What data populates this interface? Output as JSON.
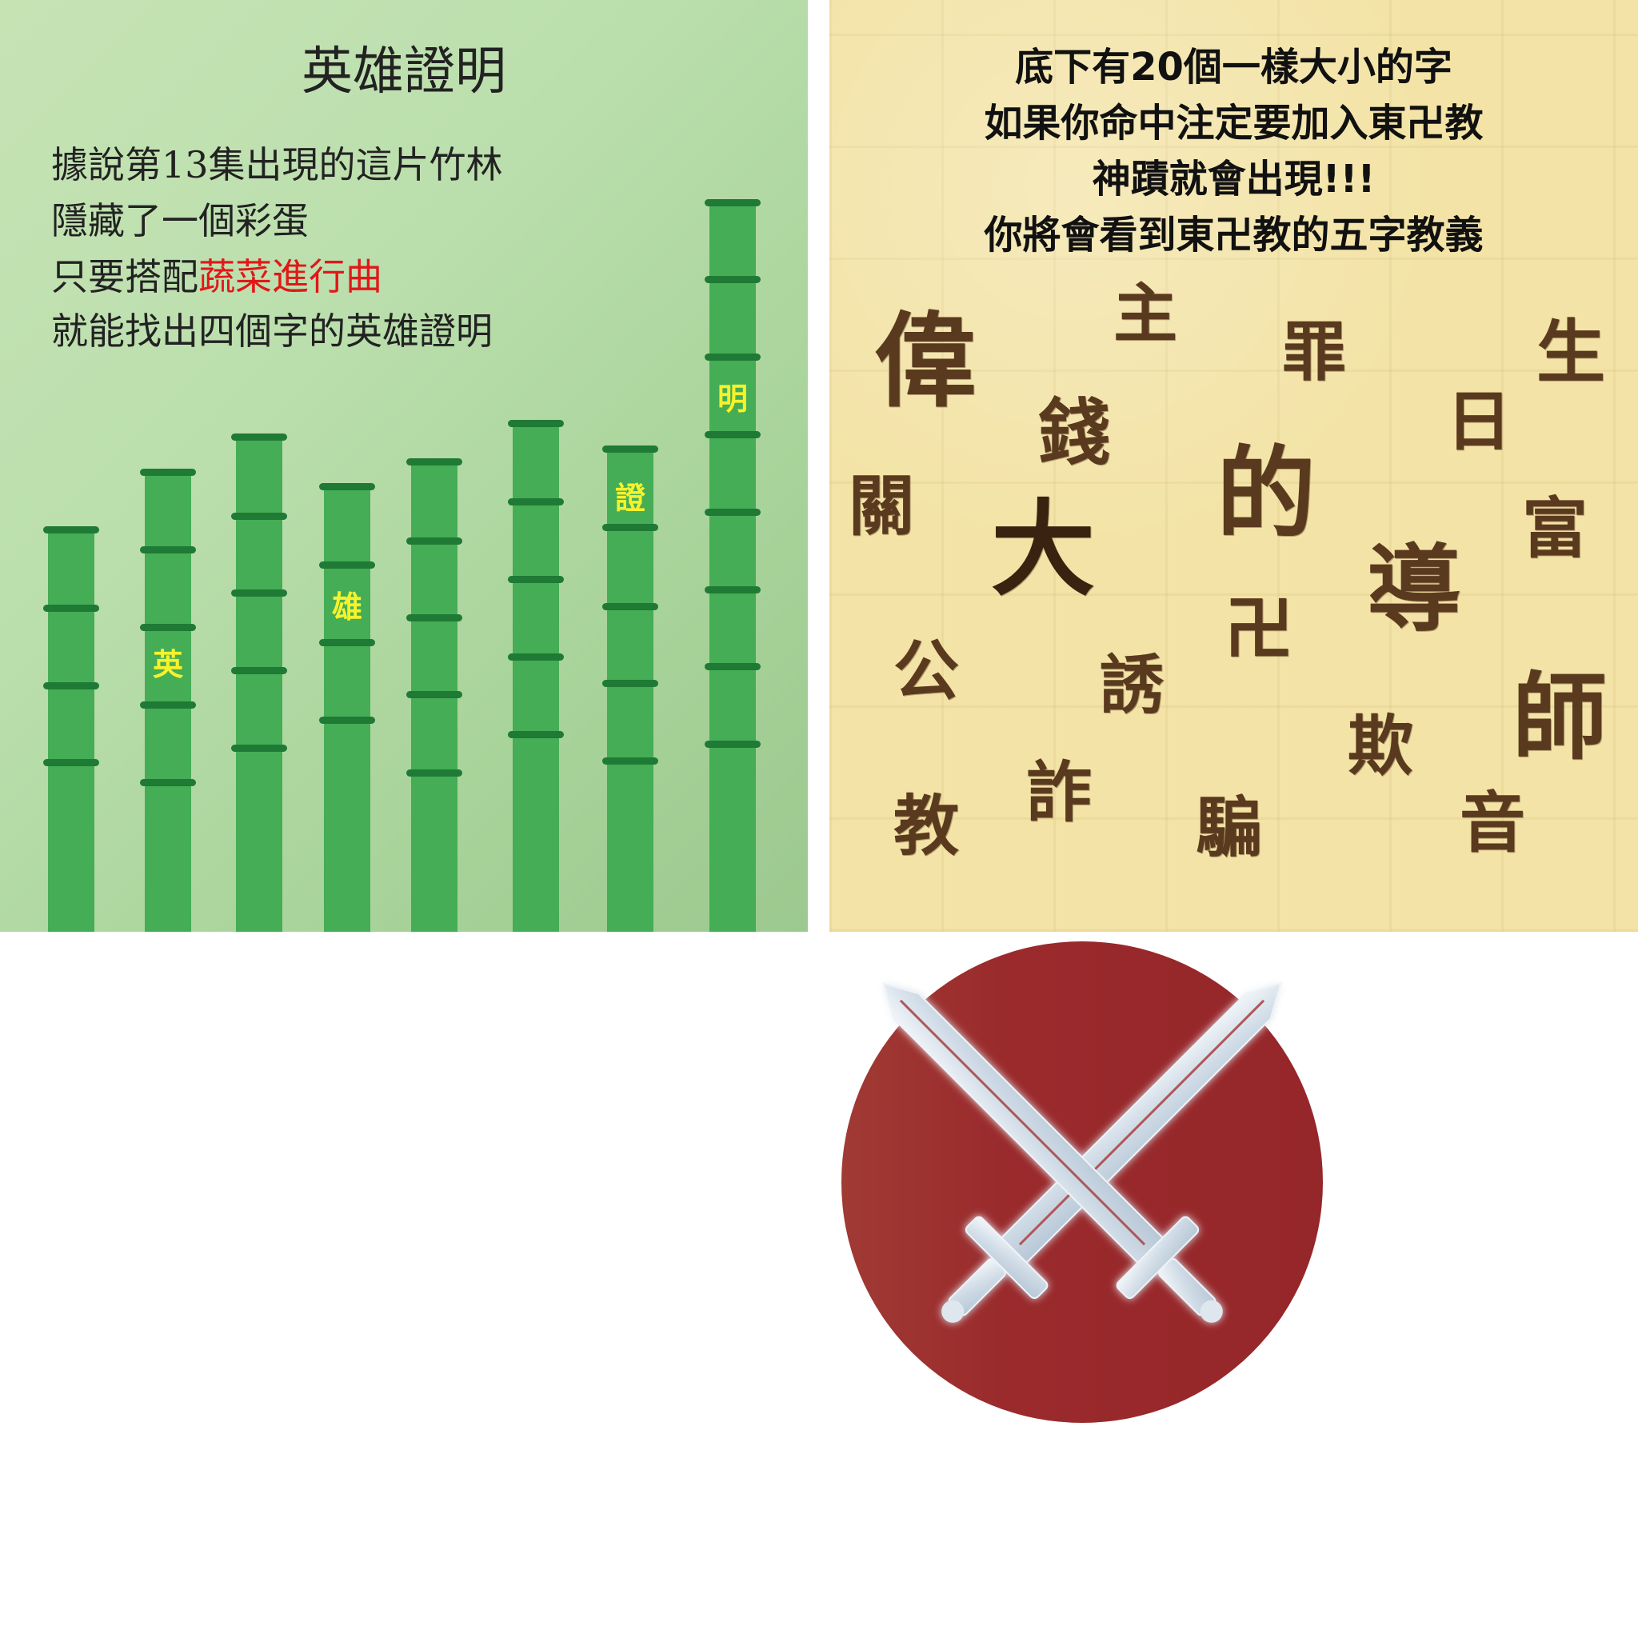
{
  "bamboo_panel": {
    "title": "英雄證明",
    "lines": [
      "據說第13集出現的這片竹林",
      "隱藏了一個彩蛋"
    ],
    "line3_prefix": "只要搭配",
    "line3_highlight": "蔬菜進行曲",
    "line4": "就能找出四個字的英雄證明",
    "stalk_chars": [
      "英",
      "雄",
      "證",
      "明"
    ]
  },
  "parchment_panel": {
    "intro": [
      "底下有20個一樣大小的字",
      "如果你命中注定要加入東卍教",
      "神蹟就會出現!!!",
      "你將會看到東卍教的五字教義"
    ],
    "chars": [
      "偉",
      "主",
      "罪",
      "生",
      "錢",
      "日",
      "關",
      "大",
      "的",
      "富",
      "導",
      "卍",
      "公",
      "誘",
      "師",
      "欺",
      "詐",
      "教",
      "騙",
      "音"
    ]
  },
  "emblem": {
    "icon": "crossed-swords-icon",
    "circle_color": "#9a2a2c",
    "accent_color": "#44ad55"
  }
}
